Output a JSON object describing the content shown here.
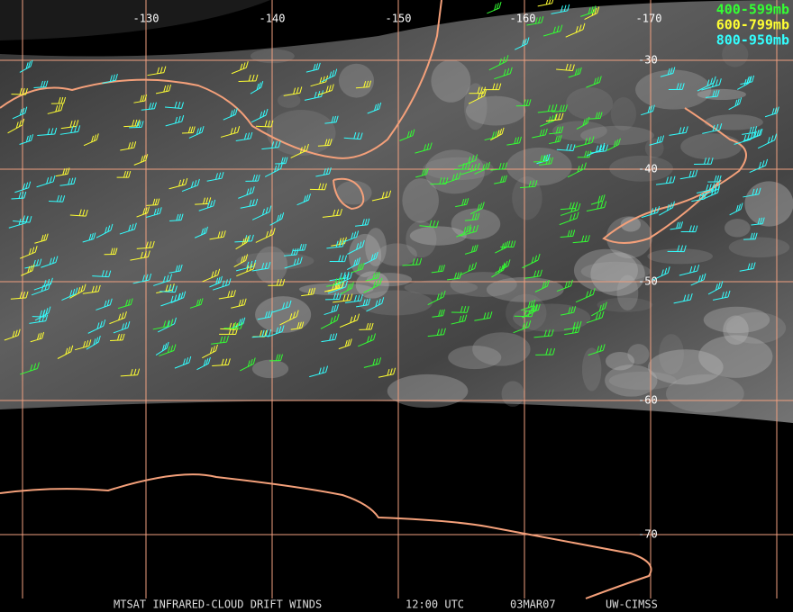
{
  "grid": {
    "longitude_labels": [
      "-130",
      "-140",
      "-150",
      "-160",
      "-170"
    ],
    "latitude_labels": [
      "-30",
      "-40",
      "-50",
      "-60",
      "-70"
    ]
  },
  "legend": {
    "entries": [
      "400-599mb",
      "600-799mb",
      "800-950mb"
    ]
  },
  "footer": {
    "product": "MTSAT INFRARED-CLOUD DRIFT WINDS",
    "time": "12:00 UTC",
    "date": "03MAR07",
    "source": "UW-CIMSS"
  }
}
